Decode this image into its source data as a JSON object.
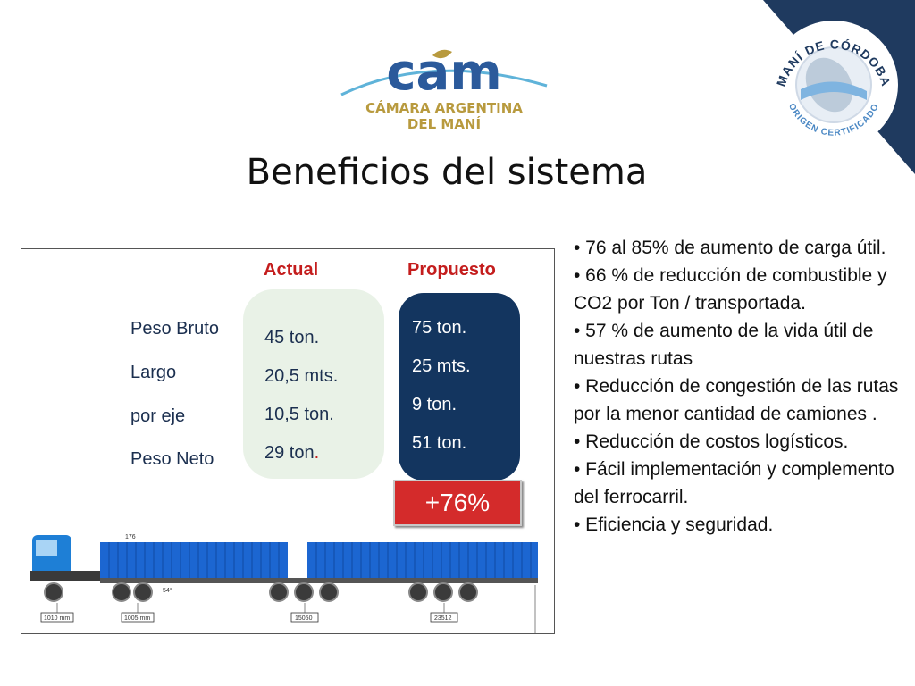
{
  "logo": {
    "wordmark": "cam",
    "line1": "CÁMARA ARGENTINA",
    "line2": "DEL MANÍ"
  },
  "seal": {
    "top_text": "MANÍ DE CÓRDOBA",
    "bottom_text": "ORIGEN CERTIFICADO"
  },
  "title": "Beneficios del sistema",
  "comparison": {
    "actual_header": "Actual",
    "proposed_header": "Propuesto",
    "rows": [
      {
        "label": "Peso Bruto",
        "actual": "45 ton.",
        "proposed": "75 ton."
      },
      {
        "label": "Largo",
        "actual": "20,5 mts.",
        "proposed": "25 mts."
      },
      {
        "label": "por eje",
        "actual": "10,5 ton.",
        "proposed": "9 ton."
      },
      {
        "label": "Peso Neto",
        "actual": "29 ton",
        "actual_suffix": ".",
        "proposed": "51 ton."
      }
    ],
    "increase": "+76%"
  },
  "truck_dims": {
    "d1": "1010 mm",
    "d2": "1005 mm",
    "d3": "15050",
    "d4": "23512",
    "angle": "54°",
    "plate": "176"
  },
  "bullets": [
    "• 76 al 85% de aumento de carga útil.",
    "• 66 % de reducción de combustible y CO2 por Ton / transportada.",
    "• 57 % de aumento de la vida útil de nuestras rutas",
    "• Reducción de congestión de las rutas por la menor cantidad de camiones .",
    "• Reducción de costos logísticos.",
    "• Fácil implementación y complemento del ferrocarril.",
    "• Eficiencia y seguridad."
  ],
  "colors": {
    "corner": "#1f3a5f",
    "proposed_box": "#13355f",
    "increase_badge": "#d42b2b",
    "header_red": "#c41d1d"
  }
}
